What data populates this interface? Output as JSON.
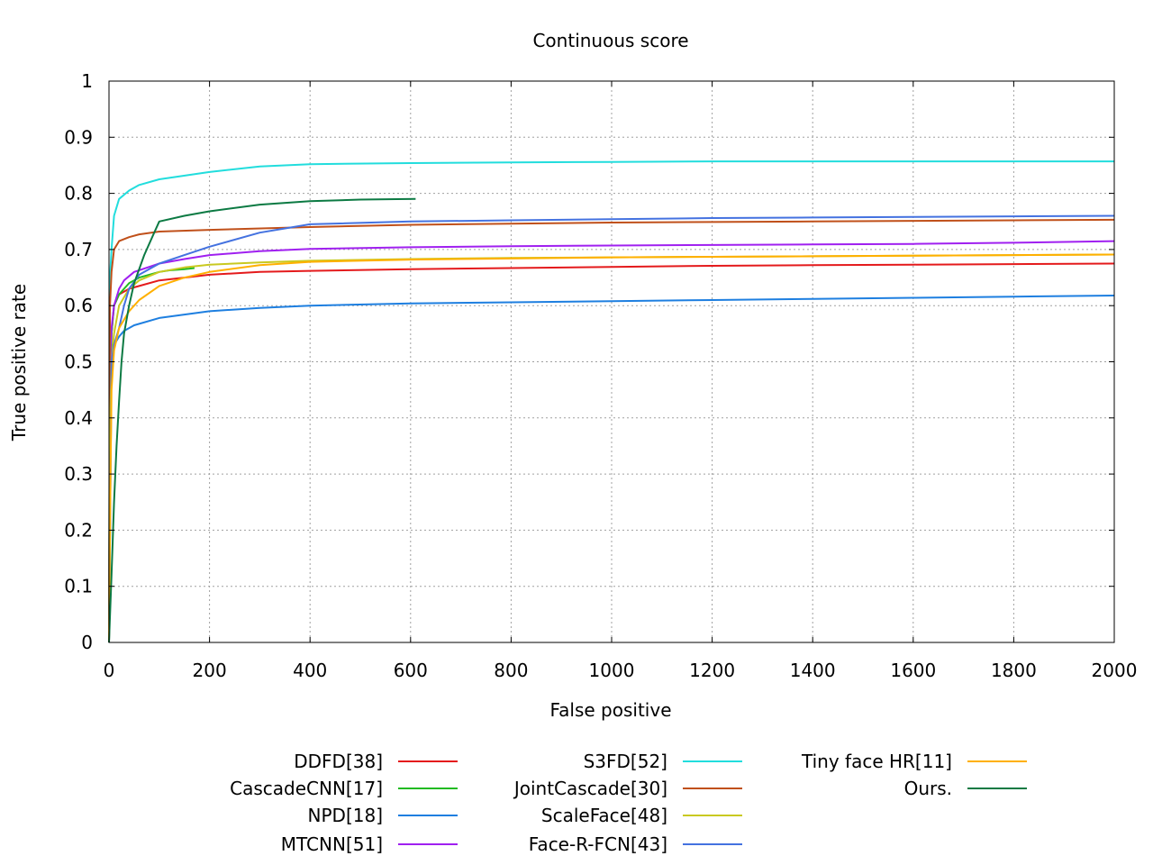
{
  "chart_data": {
    "type": "line",
    "title": "Continuous score",
    "xlabel": "False positive",
    "ylabel": "True positive rate",
    "xlim": [
      0,
      2000
    ],
    "ylim": [
      0,
      1
    ],
    "xticks": [
      0,
      200,
      400,
      600,
      800,
      1000,
      1200,
      1400,
      1600,
      1800,
      2000
    ],
    "yticks": [
      0,
      0.1,
      0.2,
      0.3,
      0.4,
      0.5,
      0.6,
      0.7,
      0.8,
      0.9,
      1
    ],
    "grid": true,
    "legend_position": "bottom",
    "series": [
      {
        "name": "DDFD[38]",
        "color": "#e41a1c",
        "x": [
          0,
          2,
          5,
          10,
          20,
          40,
          60,
          100,
          150,
          200,
          300,
          400,
          600,
          800,
          1000,
          1200,
          1400,
          1600,
          1800,
          2000
        ],
        "y": [
          0,
          0.45,
          0.55,
          0.6,
          0.62,
          0.63,
          0.635,
          0.645,
          0.65,
          0.655,
          0.66,
          0.662,
          0.665,
          0.667,
          0.669,
          0.671,
          0.672,
          0.673,
          0.674,
          0.675
        ]
      },
      {
        "name": "CascadeCNN[17]",
        "color": "#22bb22",
        "x": [
          0,
          2,
          5,
          10,
          20,
          30,
          40,
          60,
          80,
          100,
          120,
          150,
          170
        ],
        "y": [
          0,
          0.45,
          0.55,
          0.6,
          0.62,
          0.63,
          0.64,
          0.65,
          0.655,
          0.66,
          0.663,
          0.665,
          0.667
        ]
      },
      {
        "name": "NPD[18]",
        "color": "#1e7fe0",
        "x": [
          0,
          5,
          10,
          20,
          30,
          50,
          100,
          200,
          300,
          400,
          600,
          800,
          1000,
          1200,
          1400,
          1600,
          1800,
          2000
        ],
        "y": [
          0,
          0.5,
          0.53,
          0.545,
          0.555,
          0.565,
          0.578,
          0.59,
          0.596,
          0.6,
          0.604,
          0.606,
          0.608,
          0.61,
          0.612,
          0.614,
          0.616,
          0.618
        ]
      },
      {
        "name": "MTCNN[51]",
        "color": "#a020f0",
        "x": [
          0,
          3,
          5,
          10,
          20,
          30,
          50,
          100,
          150,
          200,
          300,
          400,
          600,
          800,
          1000,
          1200,
          1400,
          1600,
          1800,
          2000
        ],
        "y": [
          0,
          0.52,
          0.56,
          0.6,
          0.63,
          0.645,
          0.66,
          0.675,
          0.683,
          0.69,
          0.697,
          0.701,
          0.704,
          0.706,
          0.707,
          0.708,
          0.709,
          0.71,
          0.712,
          0.715
        ]
      },
      {
        "name": "S3FD[52]",
        "color": "#22dddd",
        "x": [
          0,
          2,
          5,
          10,
          20,
          40,
          60,
          100,
          200,
          300,
          400,
          600,
          800,
          1000,
          1200,
          1400,
          1600,
          1800,
          2000
        ],
        "y": [
          0,
          0.65,
          0.7,
          0.76,
          0.79,
          0.805,
          0.815,
          0.825,
          0.838,
          0.848,
          0.852,
          0.854,
          0.855,
          0.856,
          0.857,
          0.857,
          0.857,
          0.857,
          0.857
        ]
      },
      {
        "name": "JointCascade[30]",
        "color": "#c0501a",
        "x": [
          0,
          2,
          5,
          10,
          20,
          40,
          60,
          100,
          200,
          400,
          600,
          800,
          1000,
          1200,
          1400,
          1600,
          1800,
          2000
        ],
        "y": [
          0,
          0.6,
          0.66,
          0.7,
          0.715,
          0.722,
          0.727,
          0.732,
          0.735,
          0.74,
          0.744,
          0.746,
          0.748,
          0.749,
          0.75,
          0.751,
          0.752,
          0.753
        ]
      },
      {
        "name": "ScaleFace[48]",
        "color": "#c9c920",
        "x": [
          0,
          3,
          5,
          10,
          20,
          40,
          60,
          100,
          150,
          200,
          300,
          400,
          600,
          800,
          1000,
          1200,
          1400,
          1600,
          1800,
          2000
        ],
        "y": [
          0,
          0.42,
          0.5,
          0.55,
          0.6,
          0.63,
          0.645,
          0.66,
          0.668,
          0.673,
          0.677,
          0.68,
          0.683,
          0.685,
          0.686,
          0.687,
          0.688,
          0.689,
          0.69,
          0.691
        ]
      },
      {
        "name": "Face-R-FCN[43]",
        "color": "#4472e0",
        "x": [
          0,
          5,
          10,
          20,
          30,
          40,
          60,
          100,
          150,
          200,
          300,
          400,
          600,
          800,
          1000,
          1200,
          1400,
          1600,
          1800,
          2000
        ],
        "y": [
          0,
          0.5,
          0.53,
          0.56,
          0.6,
          0.63,
          0.655,
          0.675,
          0.69,
          0.705,
          0.73,
          0.745,
          0.75,
          0.752,
          0.754,
          0.756,
          0.757,
          0.758,
          0.759,
          0.76
        ]
      },
      {
        "name": "Tiny face HR[11]",
        "color": "#ffb000",
        "x": [
          0,
          3,
          5,
          10,
          20,
          40,
          60,
          100,
          150,
          200,
          300,
          400,
          600,
          800,
          1000,
          1200,
          1400,
          1600,
          1800,
          2000
        ],
        "y": [
          0,
          0.3,
          0.45,
          0.52,
          0.56,
          0.59,
          0.61,
          0.635,
          0.65,
          0.66,
          0.672,
          0.678,
          0.682,
          0.684,
          0.686,
          0.687,
          0.688,
          0.689,
          0.69,
          0.691
        ]
      },
      {
        "name": "Ours.",
        "color": "#0c7a43",
        "x": [
          0,
          5,
          10,
          15,
          20,
          25,
          30,
          40,
          50,
          70,
          90,
          100,
          150,
          200,
          300,
          400,
          500,
          610
        ],
        "y": [
          0,
          0.12,
          0.25,
          0.35,
          0.43,
          0.5,
          0.55,
          0.6,
          0.64,
          0.69,
          0.73,
          0.75,
          0.76,
          0.768,
          0.78,
          0.786,
          0.789,
          0.79
        ]
      }
    ]
  }
}
